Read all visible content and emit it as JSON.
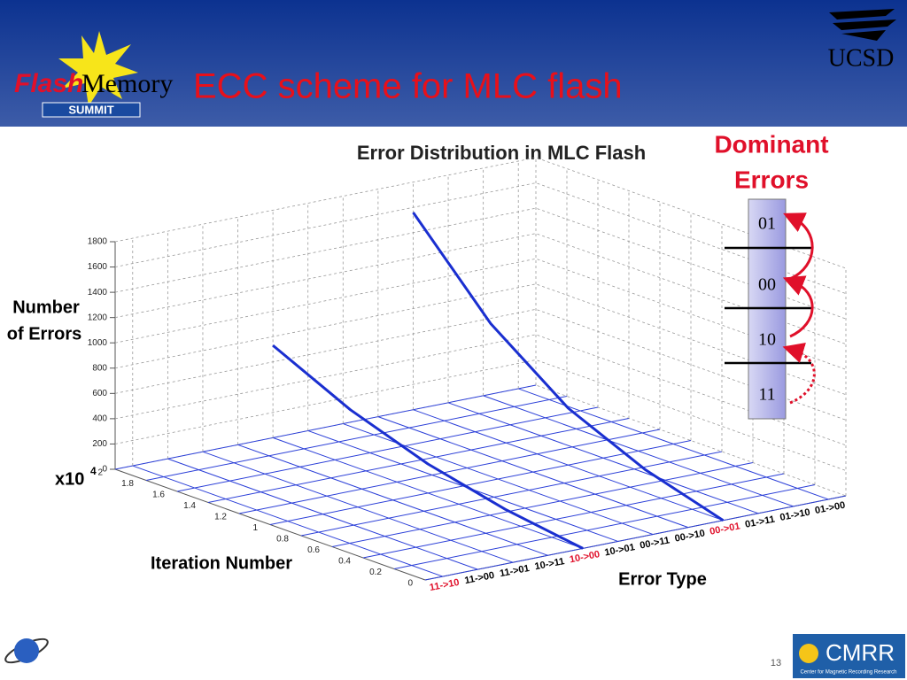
{
  "slide": {
    "title": "ECC scheme for MLC flash",
    "logo_left": {
      "flash": "Flash",
      "memory": "Memory",
      "summit": "SUMMIT"
    },
    "logo_right": "UCSD",
    "dominant_errors": [
      "Dominant",
      "Errors"
    ],
    "cells": [
      "01",
      "00",
      "10",
      "11"
    ],
    "footer": {
      "org": "CMRR",
      "org_full": "Center for Magnetic Recording Research",
      "page": "13"
    }
  },
  "chart_data": {
    "type": "line3d",
    "title": "Error Distribution in MLC Flash",
    "z_label": [
      "Number",
      "of Errors"
    ],
    "x_label": "Iteration Number",
    "category_label": "Error Type",
    "x_multiplier": {
      "base": "x10",
      "exponent": "4"
    },
    "categories": [
      "11->10",
      "11->00",
      "11->01",
      "10->11",
      "10->00",
      "10->01",
      "00->11",
      "00->10",
      "00->01",
      "01->11",
      "01->10",
      "01->00"
    ],
    "category_label_colors": [
      "#e0102a",
      "#000000",
      "#000000",
      "#000000",
      "#e0102a",
      "#000000",
      "#000000",
      "#000000",
      "#e0102a",
      "#000000",
      "#000000",
      "#000000"
    ],
    "x": [
      0,
      0.5,
      1,
      1.5,
      2
    ],
    "series": [
      {
        "category": "10->00",
        "color": "#1a2fd0",
        "values": [
          0,
          90,
          230,
          440,
          730
        ]
      },
      {
        "category": "00->01",
        "color": "#1a2fd0",
        "values": [
          0,
          180,
          450,
          900,
          1560
        ]
      }
    ],
    "xlim": [
      0,
      2
    ],
    "xticks": [
      0,
      0.2,
      0.4,
      0.6,
      0.8,
      1,
      1.2,
      1.4,
      1.6,
      1.8,
      2
    ],
    "zlim": [
      0,
      1800
    ],
    "zticks": [
      0,
      200,
      400,
      600,
      800,
      1000,
      1200,
      1400,
      1600,
      1800
    ],
    "grid": true
  }
}
